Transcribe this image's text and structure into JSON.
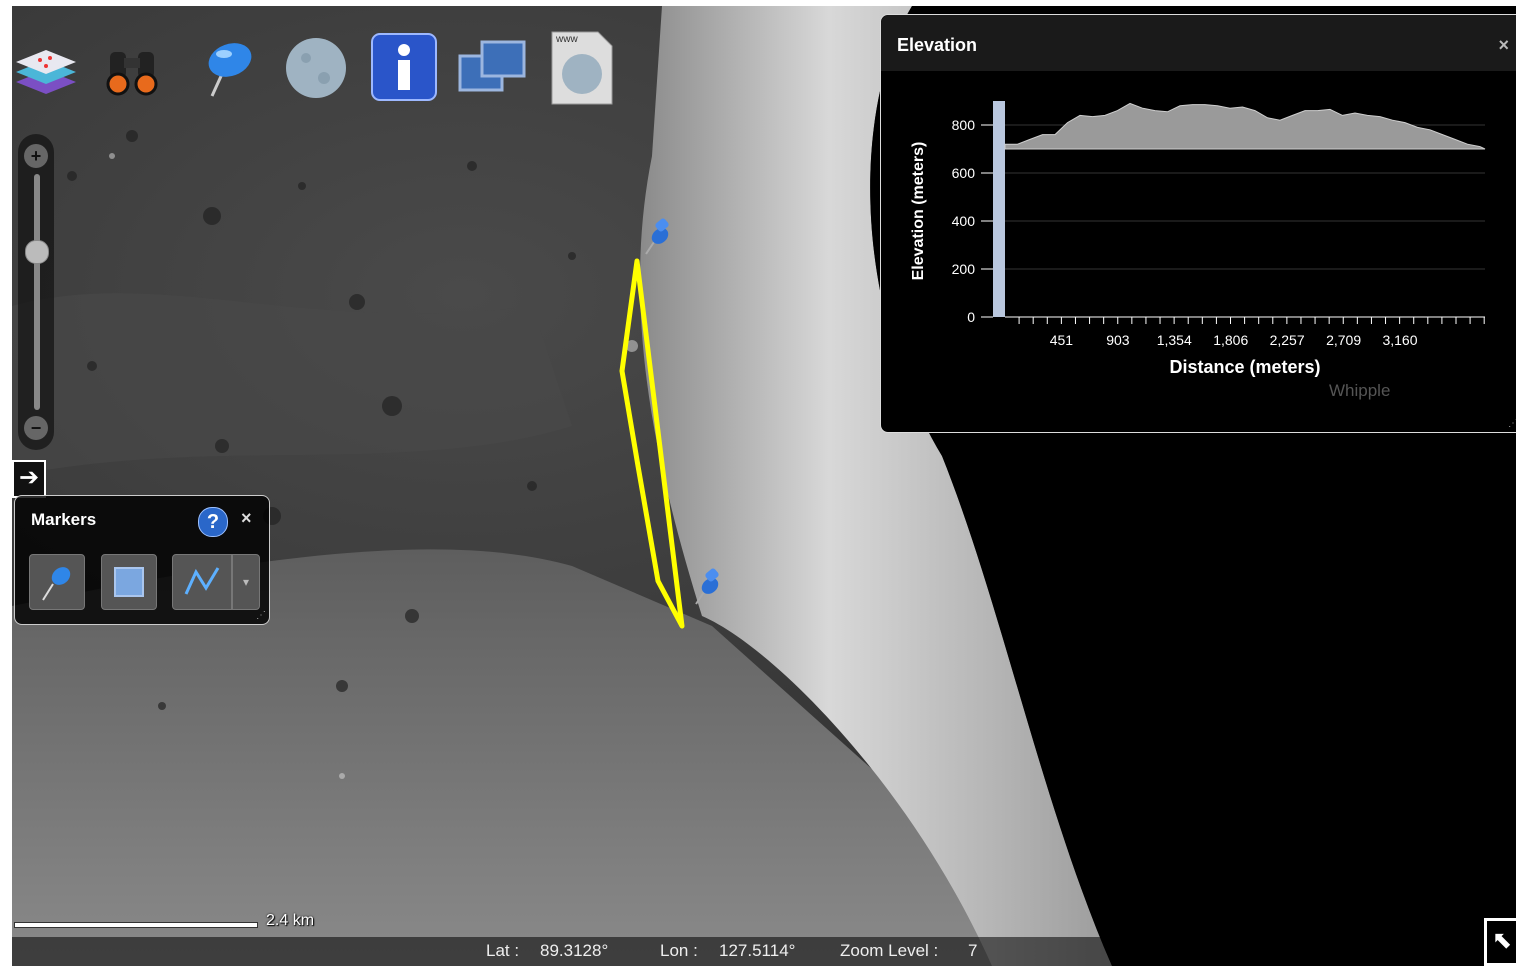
{
  "toolbar": {
    "items": [
      {
        "icon": "layers-icon"
      },
      {
        "icon": "binoculars-icon"
      },
      {
        "icon": "pushpin-tool-icon"
      },
      {
        "icon": "moon-globe-icon"
      },
      {
        "icon": "info-icon",
        "glyph": "i"
      },
      {
        "icon": "windows-icon"
      },
      {
        "icon": "web-document-icon",
        "label": "www"
      }
    ]
  },
  "zoom": {
    "in_glyph": "+",
    "out_glyph": "−",
    "level_fraction": 0.3
  },
  "expand_glyph": "➔",
  "markers_panel": {
    "title": "Markers",
    "help_glyph": "?",
    "close_glyph": "×",
    "tools": [
      {
        "icon": "pin-marker-icon"
      },
      {
        "icon": "square-marker-icon"
      },
      {
        "icon": "path-marker-icon"
      }
    ],
    "dropdown_glyph": "▾"
  },
  "elevation_panel": {
    "title": "Elevation",
    "close_glyph": "×",
    "overlay_label": "Whipple"
  },
  "chart_data": {
    "type": "area",
    "ylabel": "Elevation (meters)",
    "xlabel": "Distance (meters)",
    "ylim": [
      0,
      900
    ],
    "xlim": [
      0,
      3840
    ],
    "yticks": [
      0,
      200,
      400,
      600,
      800
    ],
    "xticks": [
      451,
      903,
      1354,
      1806,
      2257,
      2709,
      3160
    ],
    "xtick_labels": [
      "451",
      "903",
      "1,354",
      "1,806",
      "2,257",
      "2,709",
      "3,160"
    ],
    "ytick_labels": [
      "0",
      "200",
      "400",
      "600",
      "800"
    ],
    "grid": true,
    "x": [
      0,
      100,
      200,
      300,
      400,
      500,
      600,
      700,
      800,
      900,
      1000,
      1100,
      1200,
      1300,
      1400,
      1500,
      1600,
      1700,
      1800,
      1900,
      2000,
      2100,
      2200,
      2300,
      2400,
      2500,
      2600,
      2700,
      2800,
      2900,
      3000,
      3100,
      3200,
      3300,
      3400,
      3500,
      3600,
      3700,
      3800,
      3840
    ],
    "values": [
      720,
      720,
      740,
      760,
      760,
      810,
      840,
      835,
      840,
      860,
      890,
      870,
      860,
      855,
      880,
      885,
      885,
      880,
      870,
      875,
      860,
      830,
      820,
      840,
      860,
      860,
      865,
      840,
      850,
      840,
      835,
      820,
      810,
      790,
      780,
      760,
      740,
      720,
      710,
      700
    ]
  },
  "scale": {
    "label": "2.4 km"
  },
  "status": {
    "lat_label": "Lat :",
    "lat_value": "89.3128°",
    "lon_label": "Lon :",
    "lon_value": "127.5114°",
    "zoom_label": "Zoom Level :",
    "zoom_value": "7"
  },
  "corner_glyph": "⬉",
  "colors": {
    "path": "#ffff00",
    "pin": "#2a6fd6",
    "area_fill": "#9a9a9a"
  }
}
